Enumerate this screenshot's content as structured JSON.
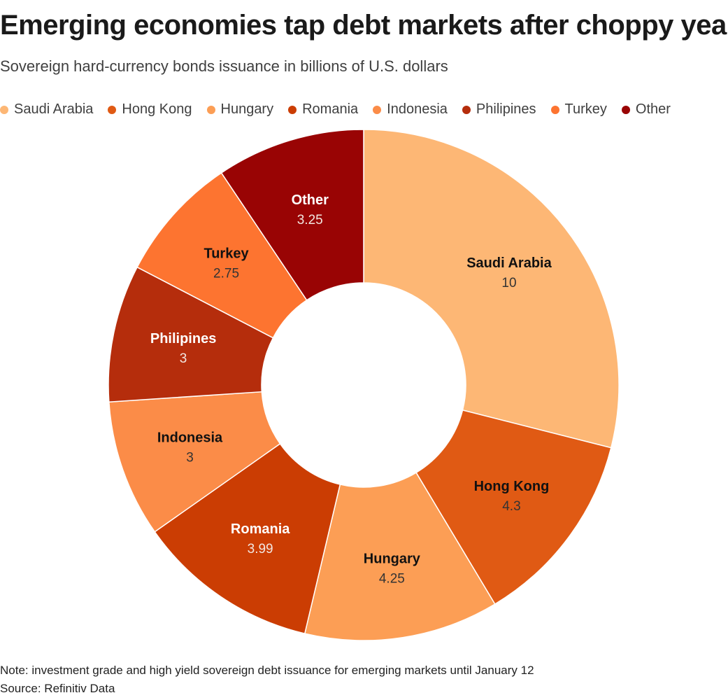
{
  "title": "Emerging economies tap debt markets after choppy year",
  "subtitle": "Sovereign hard-currency bonds issuance in billions of U.S. dollars",
  "note": "Note: investment grade and high yield sovereign debt issuance for emerging markets until January 12",
  "source": "Source: Refinitiv Data",
  "chart_data": {
    "type": "pie",
    "donut": true,
    "legend_position": "top",
    "categories": [
      "Saudi Arabia",
      "Hong Kong",
      "Hungary",
      "Romania",
      "Indonesia",
      "Philipines",
      "Turkey",
      "Other"
    ],
    "values": [
      10,
      4.3,
      4.25,
      3.99,
      3,
      3,
      2.75,
      3.25
    ],
    "value_labels": [
      "10",
      "4.3",
      "4.25",
      "3.99",
      "3",
      "3",
      "2.75",
      "3.25"
    ],
    "colors": [
      "#fdb775",
      "#e05a14",
      "#fc9e55",
      "#cb3d03",
      "#fb8c48",
      "#b52d0c",
      "#fd7430",
      "#990404"
    ],
    "label_colors": [
      "#111111",
      "#111111",
      "#111111",
      "#ffffff",
      "#111111",
      "#ffffff",
      "#111111",
      "#ffffff"
    ]
  }
}
